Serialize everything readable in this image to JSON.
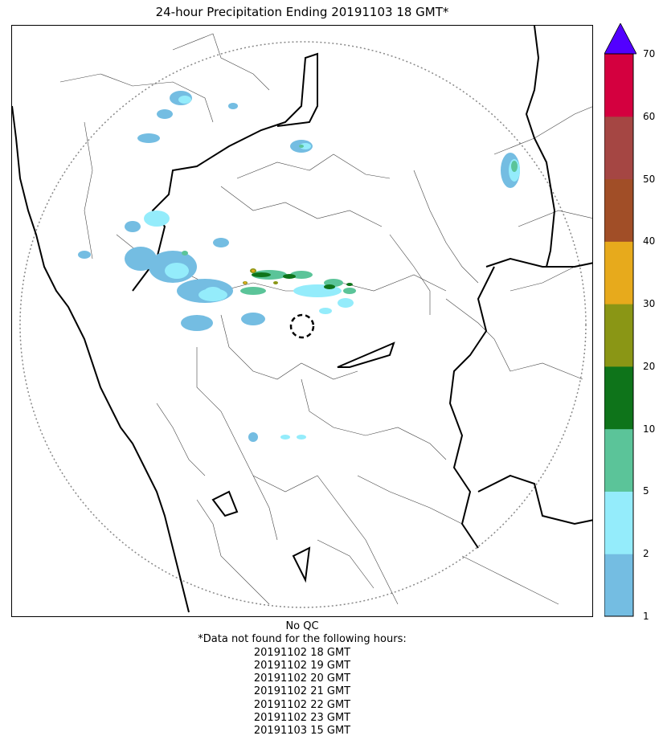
{
  "title": "24-hour Precipitation Ending 20191103 18 GMT*",
  "colorbar": {
    "ticks": [
      "1",
      "2",
      "5",
      "10",
      "20",
      "30",
      "40",
      "50",
      "60",
      "70"
    ],
    "colors": [
      "#74bde2",
      "#94ecfb",
      "#5bc499",
      "#0e741a",
      "#8a9615",
      "#e7aa1c",
      "#a14e27",
      "#a54643",
      "#d4003f"
    ],
    "extend_color": "#5200ff"
  },
  "notes": {
    "qc": "No QC",
    "missing_header": "*Data not found for the following hours:",
    "missing_hours": [
      "20191102 18 GMT",
      "20191102 19 GMT",
      "20191102 20 GMT",
      "20191102 21 GMT",
      "20191102 22 GMT",
      "20191102 23 GMT",
      "20191103 15 GMT"
    ]
  }
}
